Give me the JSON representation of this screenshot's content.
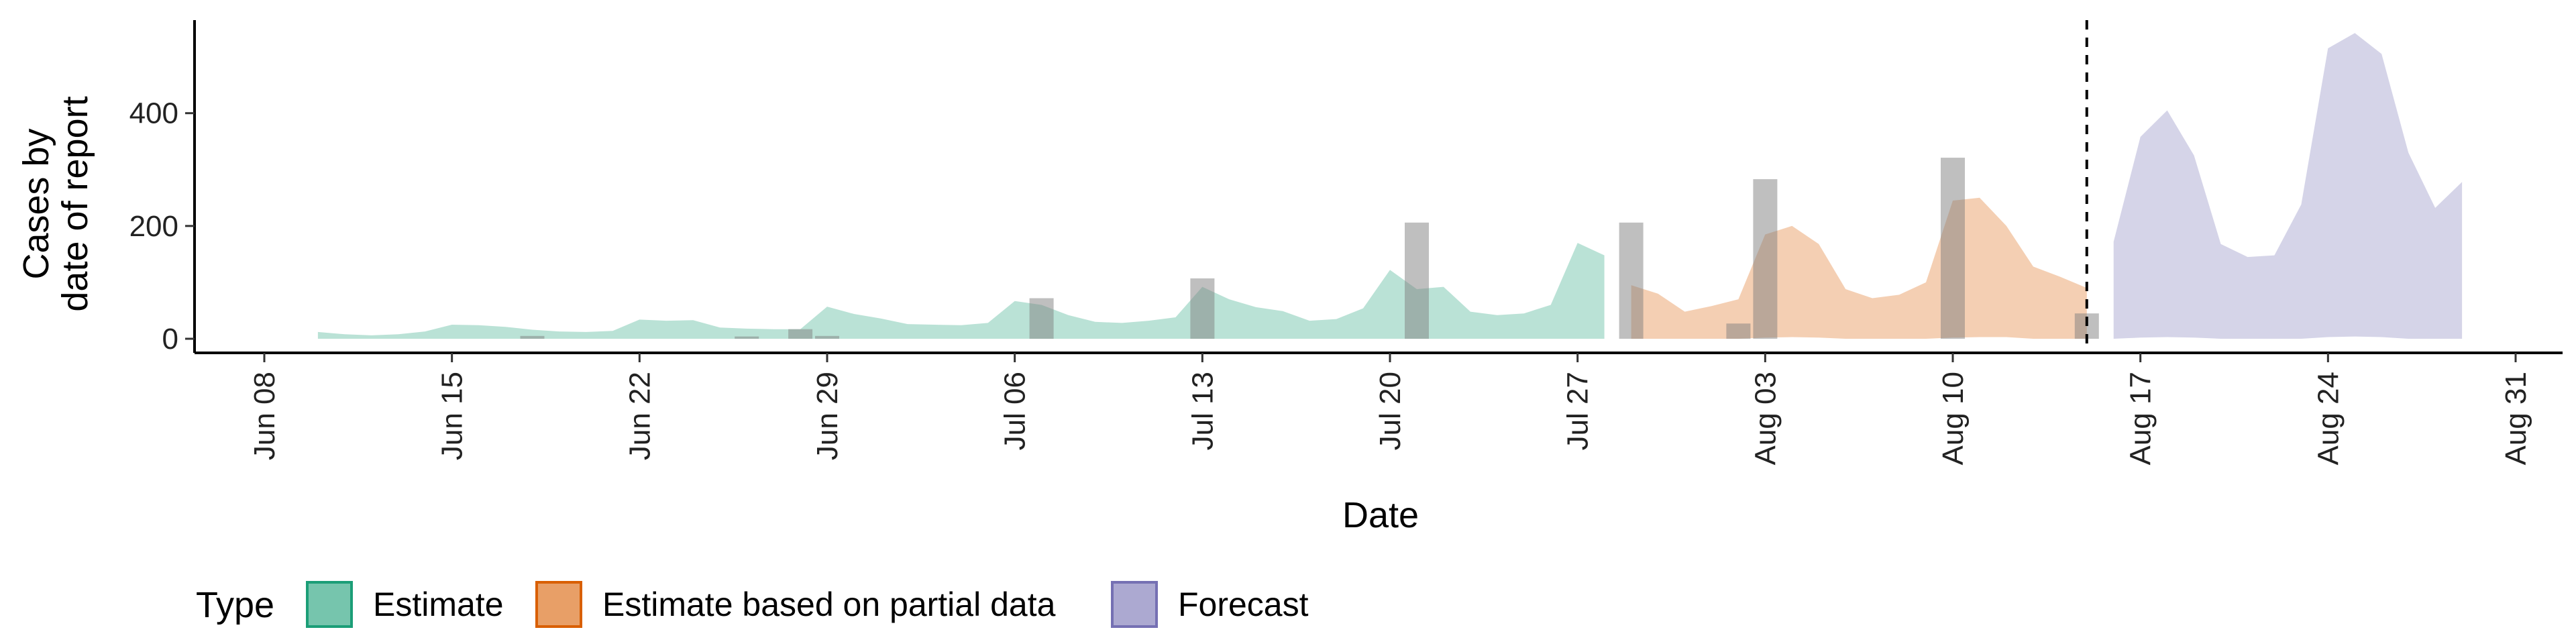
{
  "chart_data": {
    "type": "area",
    "xlabel": "Date",
    "ylabel_lines": [
      "Cases by",
      "date of report"
    ],
    "ylim": [
      -25,
      565
    ],
    "xlim": [
      "2020-06-08",
      "2020-08-31"
    ],
    "yticks": [
      0,
      200,
      400
    ],
    "yticks_labels": [
      "0",
      "200",
      "400"
    ],
    "xticks": [
      "2020-06-08",
      "2020-06-15",
      "2020-06-22",
      "2020-06-29",
      "2020-07-06",
      "2020-07-13",
      "2020-07-20",
      "2020-07-27",
      "2020-08-03",
      "2020-08-10",
      "2020-08-17",
      "2020-08-24",
      "2020-08-31"
    ],
    "xticks_labels": [
      "Jun 08",
      "Jun 15",
      "Jun 22",
      "Jun 29",
      "Jul 06",
      "Jul 13",
      "Jul 20",
      "Jul 27",
      "Aug 03",
      "Aug 10",
      "Aug 17",
      "Aug 24",
      "Aug 31"
    ],
    "forecast_start": "2020-08-15",
    "legend": {
      "title": "Type",
      "position": "bottom-left",
      "items": [
        {
          "label": "Estimate",
          "color": "#1b9e77"
        },
        {
          "label": "Estimate based on partial data",
          "color": "#d95f02"
        },
        {
          "label": "Forecast",
          "color": "#7570b3"
        }
      ]
    },
    "series": [
      {
        "name": "Estimate",
        "color": "#1b9e77",
        "x": [
          "2020-06-10",
          "2020-06-11",
          "2020-06-12",
          "2020-06-13",
          "2020-06-14",
          "2020-06-15",
          "2020-06-16",
          "2020-06-17",
          "2020-06-18",
          "2020-06-19",
          "2020-06-20",
          "2020-06-21",
          "2020-06-22",
          "2020-06-23",
          "2020-06-24",
          "2020-06-25",
          "2020-06-26",
          "2020-06-27",
          "2020-06-28",
          "2020-06-29",
          "2020-06-30",
          "2020-07-01",
          "2020-07-02",
          "2020-07-03",
          "2020-07-04",
          "2020-07-05",
          "2020-07-06",
          "2020-07-07",
          "2020-07-08",
          "2020-07-09",
          "2020-07-10",
          "2020-07-11",
          "2020-07-12",
          "2020-07-13",
          "2020-07-14",
          "2020-07-15",
          "2020-07-16",
          "2020-07-17",
          "2020-07-18",
          "2020-07-19",
          "2020-07-20",
          "2020-07-21",
          "2020-07-22",
          "2020-07-23",
          "2020-07-24",
          "2020-07-25",
          "2020-07-26",
          "2020-07-27",
          "2020-07-28"
        ],
        "upper": [
          12,
          8,
          6,
          8,
          13,
          25,
          24,
          21,
          16,
          13,
          12,
          14,
          34,
          32,
          33,
          20,
          18,
          17,
          17,
          57,
          44,
          36,
          26,
          25,
          24,
          28,
          67,
          60,
          42,
          30,
          28,
          32,
          38,
          92,
          70,
          56,
          49,
          32,
          35,
          54,
          122,
          88,
          92,
          48,
          42,
          45,
          60,
          170,
          148
        ],
        "lower": [
          0,
          0,
          0,
          0,
          0,
          0,
          0,
          0,
          0,
          0,
          0,
          0,
          0,
          0,
          0,
          0,
          0,
          0,
          0,
          0,
          0,
          0,
          0,
          0,
          0,
          0,
          0,
          0,
          0,
          0,
          0,
          0,
          0,
          0,
          0,
          0,
          0,
          0,
          0,
          0,
          0,
          0,
          0,
          0,
          0,
          0,
          0,
          0,
          0
        ]
      },
      {
        "name": "Estimate based on partial data",
        "color": "#d95f02",
        "x": [
          "2020-07-29",
          "2020-07-30",
          "2020-07-31",
          "2020-08-01",
          "2020-08-02",
          "2020-08-03",
          "2020-08-04",
          "2020-08-05",
          "2020-08-06",
          "2020-08-07",
          "2020-08-08",
          "2020-08-09",
          "2020-08-10",
          "2020-08-11",
          "2020-08-12",
          "2020-08-13",
          "2020-08-14",
          "2020-08-15"
        ],
        "upper": [
          95,
          80,
          48,
          58,
          70,
          185,
          200,
          168,
          88,
          72,
          78,
          100,
          245,
          250,
          200,
          128,
          110,
          90
        ],
        "lower": [
          0,
          0,
          0,
          0,
          0,
          2,
          3,
          2,
          0,
          0,
          0,
          0,
          2,
          3,
          3,
          0,
          0,
          0
        ]
      },
      {
        "name": "Forecast",
        "color": "#7570b3",
        "x": [
          "2020-08-16",
          "2020-08-17",
          "2020-08-18",
          "2020-08-19",
          "2020-08-20",
          "2020-08-21",
          "2020-08-22",
          "2020-08-23",
          "2020-08-24",
          "2020-08-25",
          "2020-08-26",
          "2020-08-27",
          "2020-08-28",
          "2020-08-29"
        ],
        "upper": [
          172,
          358,
          405,
          325,
          168,
          145,
          148,
          238,
          515,
          542,
          505,
          330,
          232,
          278
        ],
        "lower": [
          0,
          2,
          3,
          2,
          0,
          0,
          0,
          0,
          3,
          4,
          3,
          0,
          0,
          0
        ]
      }
    ],
    "reported_cases": {
      "color": "#808080",
      "dates": [
        "2020-06-18",
        "2020-06-26",
        "2020-06-28",
        "2020-06-29",
        "2020-07-07",
        "2020-07-13",
        "2020-07-21",
        "2020-07-29",
        "2020-08-02",
        "2020-08-03",
        "2020-08-10",
        "2020-08-15"
      ],
      "values": [
        5,
        4,
        17,
        5,
        72,
        107,
        206,
        206,
        27,
        283,
        321,
        45
      ]
    }
  }
}
